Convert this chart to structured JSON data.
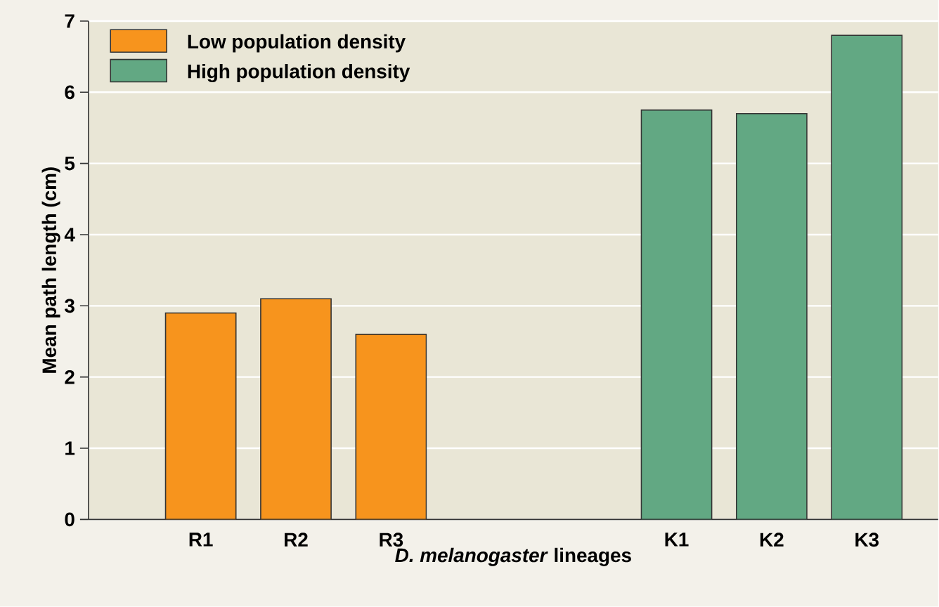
{
  "chart_data": {
    "type": "bar",
    "xlabel": "*D. melanogaster* lineages",
    "ylabel": "Mean path length (cm)",
    "categories": [
      "R1",
      "R2",
      "R3",
      null,
      null,
      "K1",
      "K2",
      "K3"
    ],
    "series": [
      {
        "name": "Low population density",
        "color": "#f7941d",
        "values": [
          2.9,
          3.1,
          2.6,
          null,
          null,
          null,
          null,
          null
        ]
      },
      {
        "name": "High population density",
        "color": "#62a883",
        "values": [
          null,
          null,
          null,
          null,
          null,
          5.75,
          5.7,
          6.8
        ]
      }
    ],
    "ylim": [
      0,
      7
    ],
    "yticks": [
      0,
      1,
      2,
      3,
      4,
      5,
      6,
      7
    ],
    "grid": "y",
    "legend": "top left"
  }
}
